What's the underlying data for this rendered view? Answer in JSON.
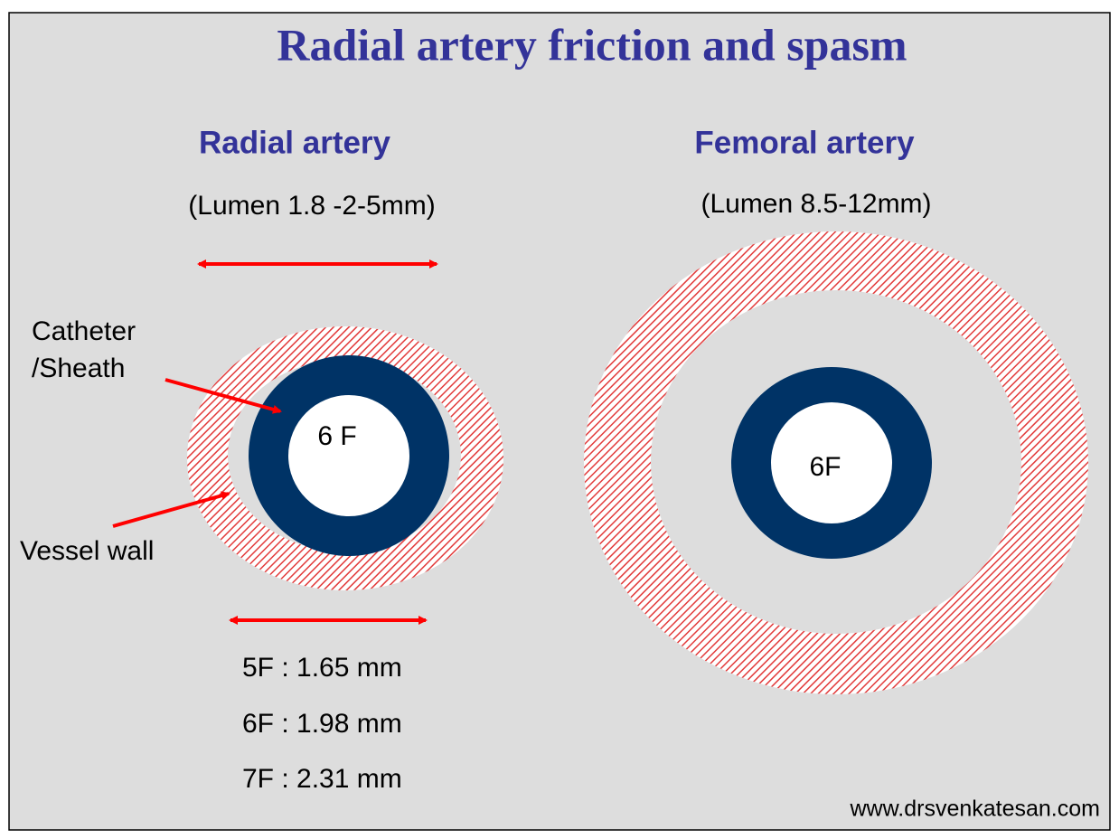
{
  "title": "Radial artery friction and spasm",
  "radial": {
    "heading": "Radial artery",
    "lumen": "(Lumen 1.8 -2-5mm)",
    "catheter_label": [
      "Catheter",
      "/Sheath"
    ],
    "vessel_label": "Vessel wall",
    "ring_label": "6 F",
    "sizes": [
      "5F : 1.65 mm",
      "6F : 1.98 mm",
      "7F : 2.31 mm"
    ]
  },
  "femoral": {
    "heading": "Femoral artery",
    "lumen": "(Lumen 8.5-12mm)",
    "ring_label": "6F"
  },
  "footer": "www.drsvenkatesan.com"
}
